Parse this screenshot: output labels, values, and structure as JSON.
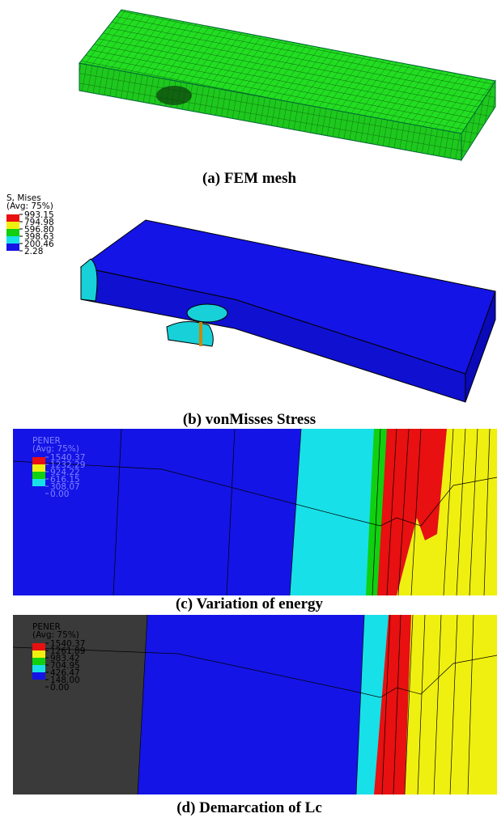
{
  "panels": [
    {
      "caption": "(a)  FEM mesh"
    },
    {
      "caption": "(b)  vonMisses Stress",
      "legend": {
        "title": "S, Mises",
        "subtitle": "(Avg: 75%)",
        "values": [
          "993.15",
          "794.98",
          "596.80",
          "398.63",
          "200.46",
          "2.28"
        ]
      }
    },
    {
      "caption": "(c)  Variation of energy",
      "legend": {
        "title": "PENER",
        "subtitle": "(Avg: 75%)",
        "values": [
          "1540.37",
          "1232.29",
          "924.22",
          "616.15",
          "308.07",
          "0.00"
        ]
      }
    },
    {
      "caption": "(d)  Demarcation of Lc",
      "legend": {
        "title": "PENER",
        "subtitle": "(Avg: 75%)",
        "values": [
          "1540.37",
          "1261.89",
          "983.42",
          "704.95",
          "426.47",
          "148.00",
          "0.00"
        ]
      }
    }
  ]
}
